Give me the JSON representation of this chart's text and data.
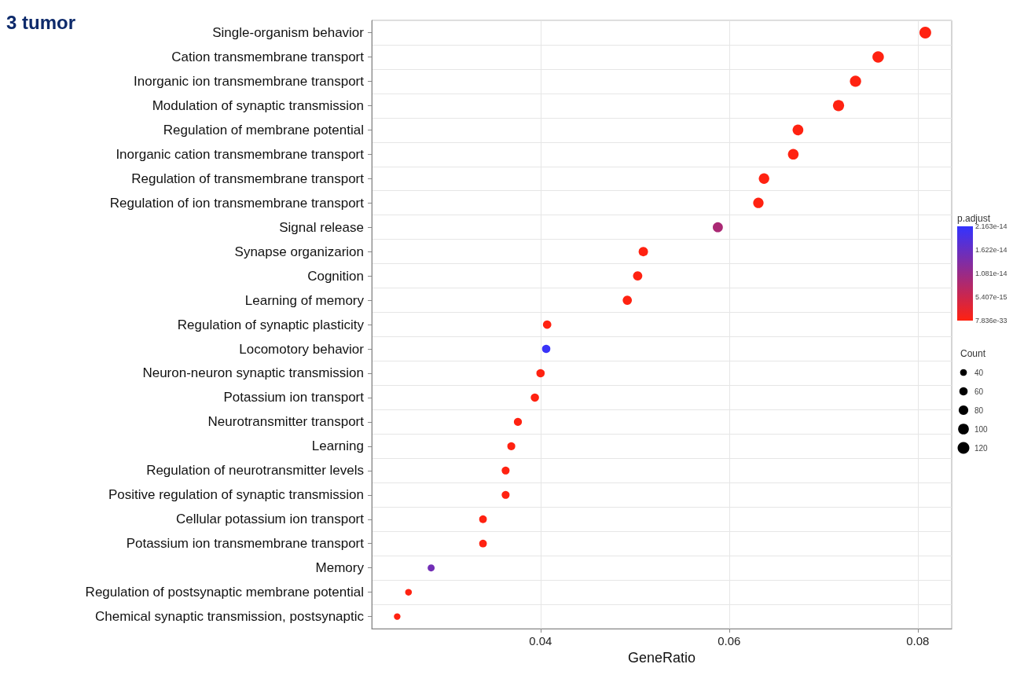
{
  "chart_data": {
    "type": "bubble",
    "title": "3 tumor",
    "xlabel": "GeneRatio",
    "clabel": "p.adjust",
    "legend_title": "Count",
    "categories": [
      "Single-organism behavior",
      "Cation transmembrane transport",
      "Inorganic ion transmembrane transport",
      "Modulation of synaptic transmission",
      "Regulation of membrane potential",
      "Inorganic cation transmembrane transport",
      "Regulation of transmembrane transport",
      "Regulation of ion transmembrane transport",
      "Signal release",
      "Synapse organizarion",
      "Cognition",
      "Learning of memory",
      "Regulation of synaptic plasticity",
      "Locomotory behavior",
      "Neuron-neuron synaptic transmission",
      "Potassium ion transport",
      "Neurotransmitter transport",
      "Learning",
      "Regulation of neurotransmitter levels",
      "Positive regulation of synaptic transmission",
      "Cellular potassium ion transport",
      "Potassium ion transmembrane transport",
      "Memory",
      "Regulation of postsynaptic membrane potential",
      "Chemical synaptic transmission, postsynaptic"
    ],
    "orientation": "horizontal",
    "values": [
      0.0808,
      0.0758,
      0.0734,
      0.0716,
      0.0673,
      0.0668,
      0.0637,
      0.0631,
      0.0588,
      0.0509,
      0.0503,
      0.0492,
      0.0407,
      0.0406,
      0.04,
      0.0394,
      0.0376,
      0.0369,
      0.0363,
      0.0363,
      0.0339,
      0.0339,
      0.0284,
      0.026,
      0.0248
    ],
    "sizes": [
      120,
      113,
      109,
      107,
      100,
      99,
      95,
      94,
      88,
      76,
      75,
      73,
      61,
      60,
      60,
      59,
      56,
      55,
      54,
      54,
      51,
      51,
      42,
      39,
      37
    ],
    "cvalues": [
      7.836e-33,
      7.836e-33,
      7.836e-33,
      7.836e-33,
      7.836e-33,
      7.836e-33,
      7.836e-33,
      7.836e-33,
      9e-15,
      7.836e-33,
      7.836e-33,
      7.836e-33,
      7.836e-33,
      2.1e-14,
      7.836e-33,
      7.836e-33,
      7.836e-33,
      7.836e-33,
      7.836e-33,
      7.836e-33,
      7.836e-33,
      7.836e-33,
      1.5e-14,
      7.836e-33,
      7.836e-33
    ],
    "size_legend": [
      40,
      60,
      80,
      100,
      120
    ],
    "clim": [
      7.836e-33,
      2.163e-14
    ],
    "cticks": [
      {
        "value": 2.163e-14,
        "label": "2.163e-14"
      },
      {
        "value": 1.622e-14,
        "label": "1.622e-14"
      },
      {
        "value": 1.081e-14,
        "label": "1.081e-14"
      },
      {
        "value": 5.407e-15,
        "label": "5.407e-15"
      },
      {
        "value": 7.836e-33,
        "label": "7.836e-33"
      }
    ],
    "xlim": [
      0.0221,
      0.0836
    ],
    "xticks": [
      0.04,
      0.06,
      0.08
    ],
    "grid": true,
    "marker": "circle"
  }
}
